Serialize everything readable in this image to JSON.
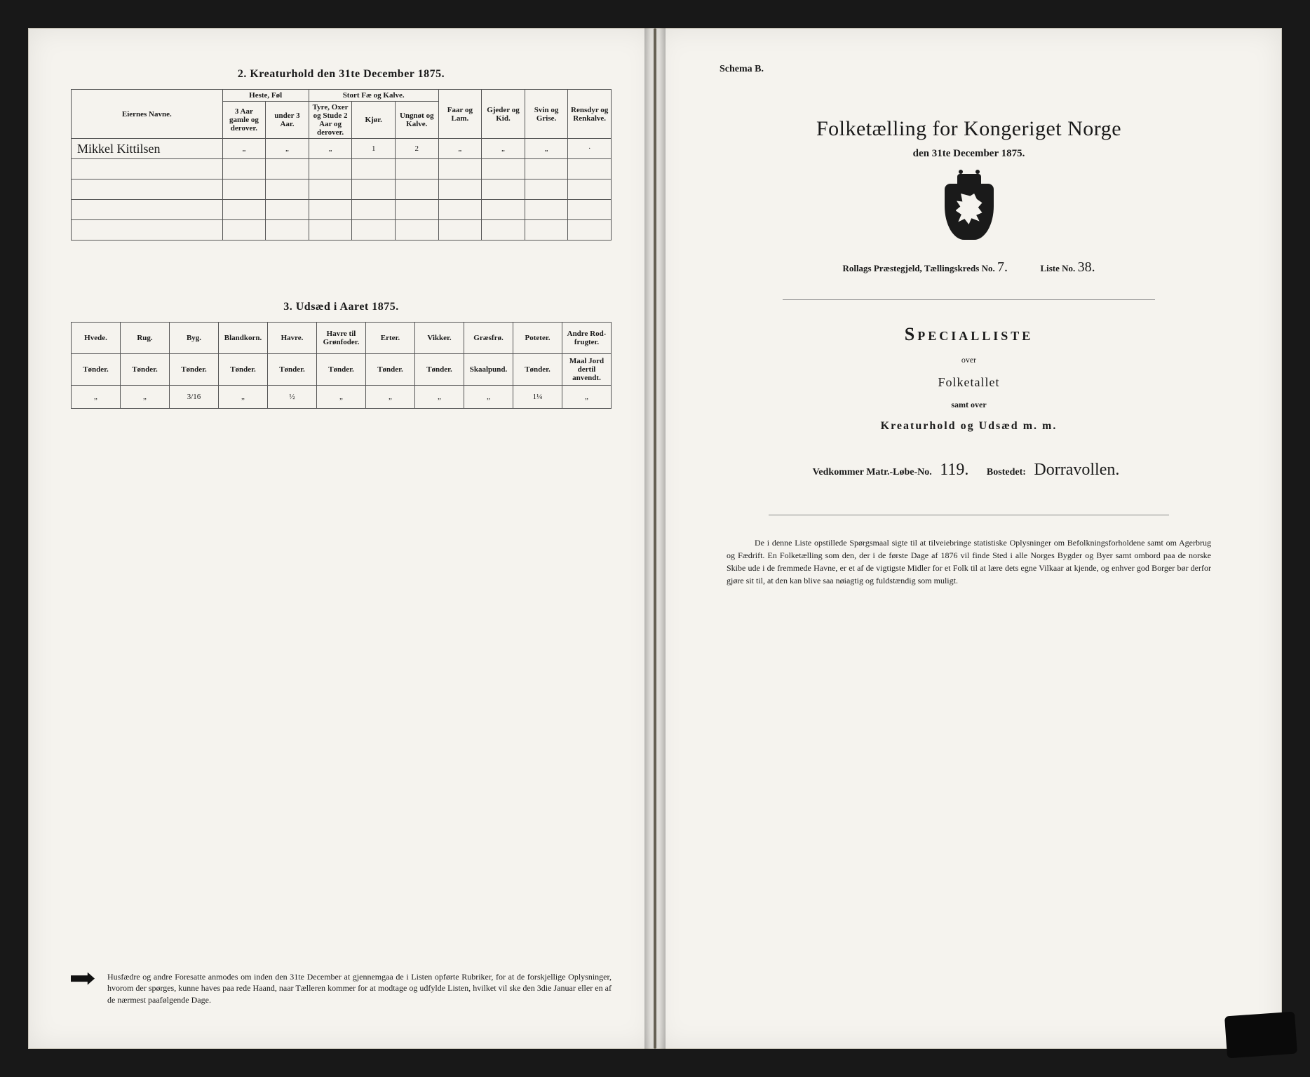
{
  "colors": {
    "paper": "#f5f3ee",
    "ink": "#1a1a1a",
    "frame": "#181818",
    "rule": "#555555"
  },
  "left": {
    "table2": {
      "title": "2.  Kreaturhold den 31te December 1875.",
      "group_headers": {
        "name": "Eiernes Navne.",
        "horses": "Heste, Føl",
        "cattle": "Stort Fæ og Kalve.",
        "sheep": "Faar og Lam.",
        "goats": "Gjeder og Kid.",
        "pigs": "Svin og Grise.",
        "reindeer": "Rensdyr og Renkalve."
      },
      "sub_headers": {
        "h1": "3 Aar gamle og derover.",
        "h2": "under 3 Aar.",
        "c1": "Tyre, Oxer og Stude 2 Aar og derover.",
        "c2": "Kjør.",
        "c3": "Ungnøt og Kalve."
      },
      "row": {
        "name": "Mikkel Kittilsen",
        "h1": "„",
        "h2": "„",
        "c1": "„",
        "c2": "1",
        "c3": "2",
        "sheep": "„",
        "goats": "„",
        "pigs": "„",
        "reindeer": "·"
      }
    },
    "table3": {
      "title": "3.  Udsæd i Aaret 1875.",
      "headers": {
        "hvede": "Hvede.",
        "rug": "Rug.",
        "byg": "Byg.",
        "bland": "Blandkorn.",
        "havre": "Havre.",
        "havregr": "Havre til Grønfoder.",
        "erter": "Erter.",
        "vikker": "Vikker.",
        "graes": "Græsfrø.",
        "pot": "Poteter.",
        "andre": "Andre Rod-frugter."
      },
      "units": {
        "tonder": "Tønder.",
        "skaal": "Skaalpund.",
        "maal": "Maal Jord dertil anvendt."
      },
      "row": {
        "hvede": "„",
        "rug": "„",
        "byg": "3/16",
        "bland": "„",
        "havre": "½",
        "havregr": "„",
        "erter": "„",
        "vikker": "„",
        "graes": "„",
        "pot": "1¼",
        "andre": "„"
      }
    },
    "footnote": "Husfædre og andre Foresatte anmodes om inden den 31te December at gjennemgaa de i Listen opførte Rubriker, for at de forskjellige Oplysninger, hvorom der spørges, kunne haves paa rede Haand, naar Tælleren kommer for at modtage og udfylde Listen, hvilket vil ske den 3die Januar eller en af de nærmest paafølgende Dage."
  },
  "right": {
    "schema": "Schema B.",
    "title": "Folketælling for Kongeriget Norge",
    "subtitle": "den 31te December 1875.",
    "meta1": {
      "parish_label": "Rollags Præstegjeld,  Tællingskreds No.",
      "kreds_no": "7.",
      "liste_label": "Liste No.",
      "liste_no": "38."
    },
    "special": "Specialliste",
    "over": "over",
    "folketallet": "Folketallet",
    "samt": "samt over",
    "kreat": "Kreaturhold og Udsæd m. m.",
    "meta2": {
      "matr_label": "Vedkommer Matr.-Løbe-No.",
      "matr_no": "119.",
      "bosted_label": "Bostedet:",
      "bosted": "Dorravollen."
    },
    "para": "De i denne Liste opstillede Spørgsmaal sigte til at tilveiebringe statistiske Oplysninger om Befolkningsforholdene samt om Agerbrug og Fædrift.  En Folketælling som den, der i de første Dage af 1876 vil finde Sted i alle Norges Bygder og Byer samt ombord paa de norske Skibe ude i de fremmede Havne, er et af de vigtigste Midler for et Folk til at lære dets egne Vilkaar at kjende, og enhver god Borger bør derfor gjøre sit til, at den kan blive saa nøiagtig og fuldstændig som muligt."
  }
}
